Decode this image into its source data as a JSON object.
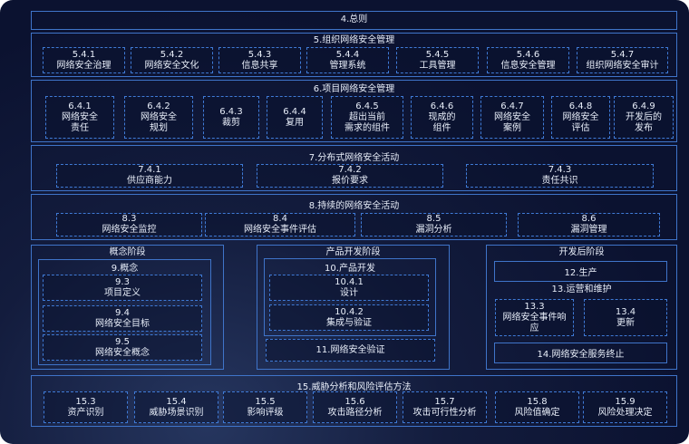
{
  "s4": {
    "title": "4.总则"
  },
  "s5": {
    "title": "5.组织网络安全管理",
    "items": [
      [
        "5.4.1",
        "网络安全治理"
      ],
      [
        "5.4.2",
        "网络安全文化"
      ],
      [
        "5.4.3",
        "信息共享"
      ],
      [
        "5.4.4",
        "管理系统"
      ],
      [
        "5.4.5",
        "工具管理"
      ],
      [
        "5.4.6",
        "信息安全管理"
      ],
      [
        "5.4.7",
        "组织网络安全审计"
      ]
    ]
  },
  "s6": {
    "title": "6.项目网络安全管理",
    "items": [
      [
        "6.4.1",
        "网络安全",
        "责任"
      ],
      [
        "6.4.2",
        "网络安全",
        "规划"
      ],
      [
        "6.4.3",
        "裁剪"
      ],
      [
        "6.4.4",
        "复用"
      ],
      [
        "6.4.5",
        "超出当前",
        "需求的组件"
      ],
      [
        "6.4.6",
        "现成的",
        "组件"
      ],
      [
        "6.4.7",
        "网络安全",
        "案例"
      ],
      [
        "6.4.8",
        "网络安全",
        "评估"
      ],
      [
        "6.4.9",
        "开发后的",
        "发布"
      ]
    ]
  },
  "s7": {
    "title": "7.分布式网络安全活动",
    "items": [
      [
        "7.4.1",
        "供应商能力"
      ],
      [
        "7.4.2",
        "报价要求"
      ],
      [
        "7.4.3",
        "责任共识"
      ]
    ]
  },
  "s8": {
    "title": "8.持续的网络安全活动",
    "items": [
      [
        "8.3",
        "网络安全监控"
      ],
      [
        "8.4",
        "网络安全事件评估"
      ],
      [
        "8.5",
        "漏洞分析"
      ],
      [
        "8.6",
        "漏洞管理"
      ]
    ]
  },
  "concept": {
    "title": "概念阶段",
    "sub": "9.概念",
    "items": [
      [
        "9.3",
        "项目定义"
      ],
      [
        "9.4",
        "网络安全目标"
      ],
      [
        "9.5",
        "网络安全概念"
      ]
    ]
  },
  "product": {
    "title": "产品开发阶段",
    "sub": "10.产品开发",
    "items": [
      [
        "10.4.1",
        "设计"
      ],
      [
        "10.4.2",
        "集成与验证"
      ]
    ],
    "verify": "11.网络安全验证"
  },
  "post": {
    "title": "开发后阶段",
    "production": "12.生产",
    "sub": "13.运营和维护",
    "items": [
      [
        "13.3",
        "网络安全事件响",
        "应"
      ],
      [
        "13.4",
        "更新"
      ]
    ],
    "end": "14.网络安全服务终止"
  },
  "s15": {
    "title": "15.威胁分析和风险评估方法",
    "items": [
      [
        "15.3",
        "资产识别"
      ],
      [
        "15.4",
        "威胁场景识别"
      ],
      [
        "15.5",
        "影响评级"
      ],
      [
        "15.6",
        "攻击路径分析"
      ],
      [
        "15.7",
        "攻击可行性分析"
      ],
      [
        "15.8",
        "风险值确定"
      ],
      [
        "15.9",
        "风险处理决定"
      ]
    ]
  }
}
